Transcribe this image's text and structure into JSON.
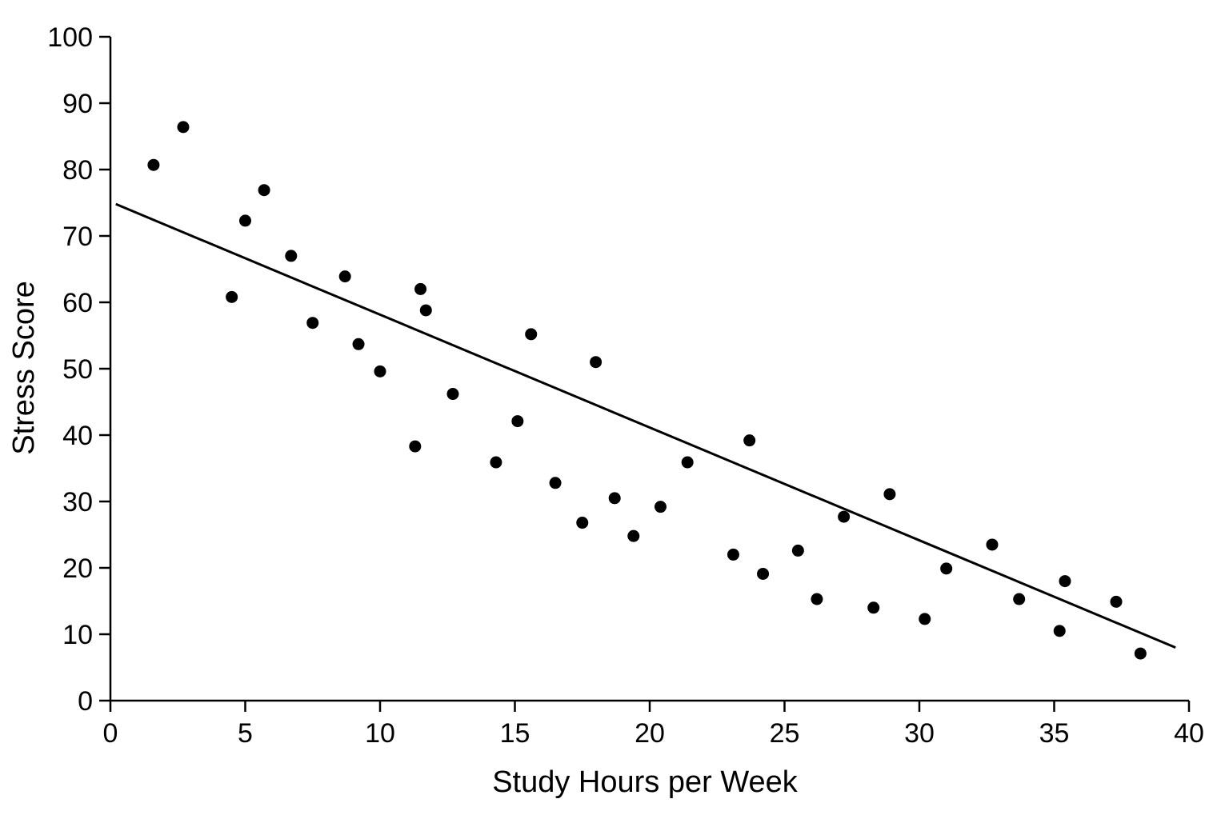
{
  "chart_data": {
    "type": "scatter",
    "title": "",
    "xlabel": "Study Hours per Week",
    "ylabel": "Stress Score",
    "xlim": [
      0,
      40
    ],
    "ylim": [
      0,
      100
    ],
    "x_ticks": [
      0,
      5,
      10,
      15,
      20,
      25,
      30,
      35,
      40
    ],
    "y_ticks": [
      0,
      10,
      20,
      30,
      40,
      50,
      60,
      70,
      80,
      90,
      100
    ],
    "grid": false,
    "legend": "none",
    "colors": {
      "points": "#000000",
      "trend_line": "#000000"
    },
    "series": [
      {
        "points": [
          {
            "x": 1.6,
            "y": 80.7
          },
          {
            "x": 2.7,
            "y": 86.4
          },
          {
            "x": 4.5,
            "y": 60.8
          },
          {
            "x": 5.0,
            "y": 72.3
          },
          {
            "x": 5.7,
            "y": 76.9
          },
          {
            "x": 6.7,
            "y": 67.0
          },
          {
            "x": 7.5,
            "y": 56.9
          },
          {
            "x": 8.7,
            "y": 63.9
          },
          {
            "x": 9.2,
            "y": 53.7
          },
          {
            "x": 10.0,
            "y": 49.6
          },
          {
            "x": 11.3,
            "y": 38.3
          },
          {
            "x": 11.5,
            "y": 62.0
          },
          {
            "x": 11.7,
            "y": 58.8
          },
          {
            "x": 12.7,
            "y": 46.2
          },
          {
            "x": 14.3,
            "y": 35.9
          },
          {
            "x": 15.1,
            "y": 42.1
          },
          {
            "x": 15.6,
            "y": 55.2
          },
          {
            "x": 16.5,
            "y": 32.8
          },
          {
            "x": 17.5,
            "y": 26.8
          },
          {
            "x": 18.0,
            "y": 51.0
          },
          {
            "x": 18.7,
            "y": 30.5
          },
          {
            "x": 19.4,
            "y": 24.8
          },
          {
            "x": 20.4,
            "y": 29.2
          },
          {
            "x": 21.4,
            "y": 35.9
          },
          {
            "x": 23.1,
            "y": 22.0
          },
          {
            "x": 23.7,
            "y": 39.2
          },
          {
            "x": 24.2,
            "y": 19.1
          },
          {
            "x": 25.5,
            "y": 22.6
          },
          {
            "x": 26.2,
            "y": 15.3
          },
          {
            "x": 27.2,
            "y": 27.7
          },
          {
            "x": 28.3,
            "y": 14.0
          },
          {
            "x": 28.9,
            "y": 31.1
          },
          {
            "x": 30.2,
            "y": 12.3
          },
          {
            "x": 31.0,
            "y": 19.9
          },
          {
            "x": 32.7,
            "y": 23.5
          },
          {
            "x": 33.7,
            "y": 15.3
          },
          {
            "x": 35.2,
            "y": 10.5
          },
          {
            "x": 35.4,
            "y": 18.0
          },
          {
            "x": 37.3,
            "y": 14.9
          },
          {
            "x": 38.2,
            "y": 7.1
          }
        ]
      }
    ],
    "trend_line": {
      "type": "linear",
      "x": [
        0.2,
        39.5
      ],
      "y": [
        74.8,
        8.0
      ]
    }
  }
}
